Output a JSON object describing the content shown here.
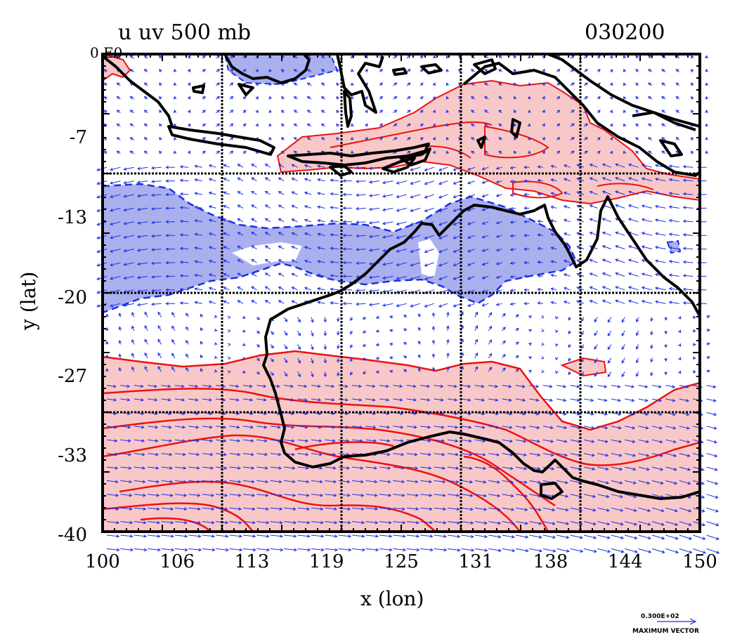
{
  "map": {
    "title": "u uv 500 mb",
    "timestamp": "030200",
    "corner_label": "0 E0",
    "x_axis_label": "x (lon)",
    "y_axis_label": "y (lat)",
    "lon_range": [
      100,
      150
    ],
    "lat_range": [
      -40,
      0
    ],
    "x_ticks": [
      "100",
      "106",
      "113",
      "119",
      "125",
      "131",
      "138",
      "144",
      "150"
    ],
    "y_ticks": [
      "-7",
      "-13",
      "-20",
      "-27",
      "-33",
      "-40"
    ],
    "grid_lon": [
      110,
      120,
      130,
      140
    ],
    "grid_lat": [
      -10,
      -20,
      -30
    ],
    "legend_value": "0.300E+02",
    "legend_label": "MAXIMUM VECTOR",
    "colors": {
      "positive_fill": "#f8c8c8",
      "positive_line": "#ee1111",
      "negative_fill": "#aab0ee",
      "negative_line": "#1c2fe6",
      "vector": "#1c2fe6",
      "coast": "#000000",
      "grid": "#000000"
    }
  }
}
